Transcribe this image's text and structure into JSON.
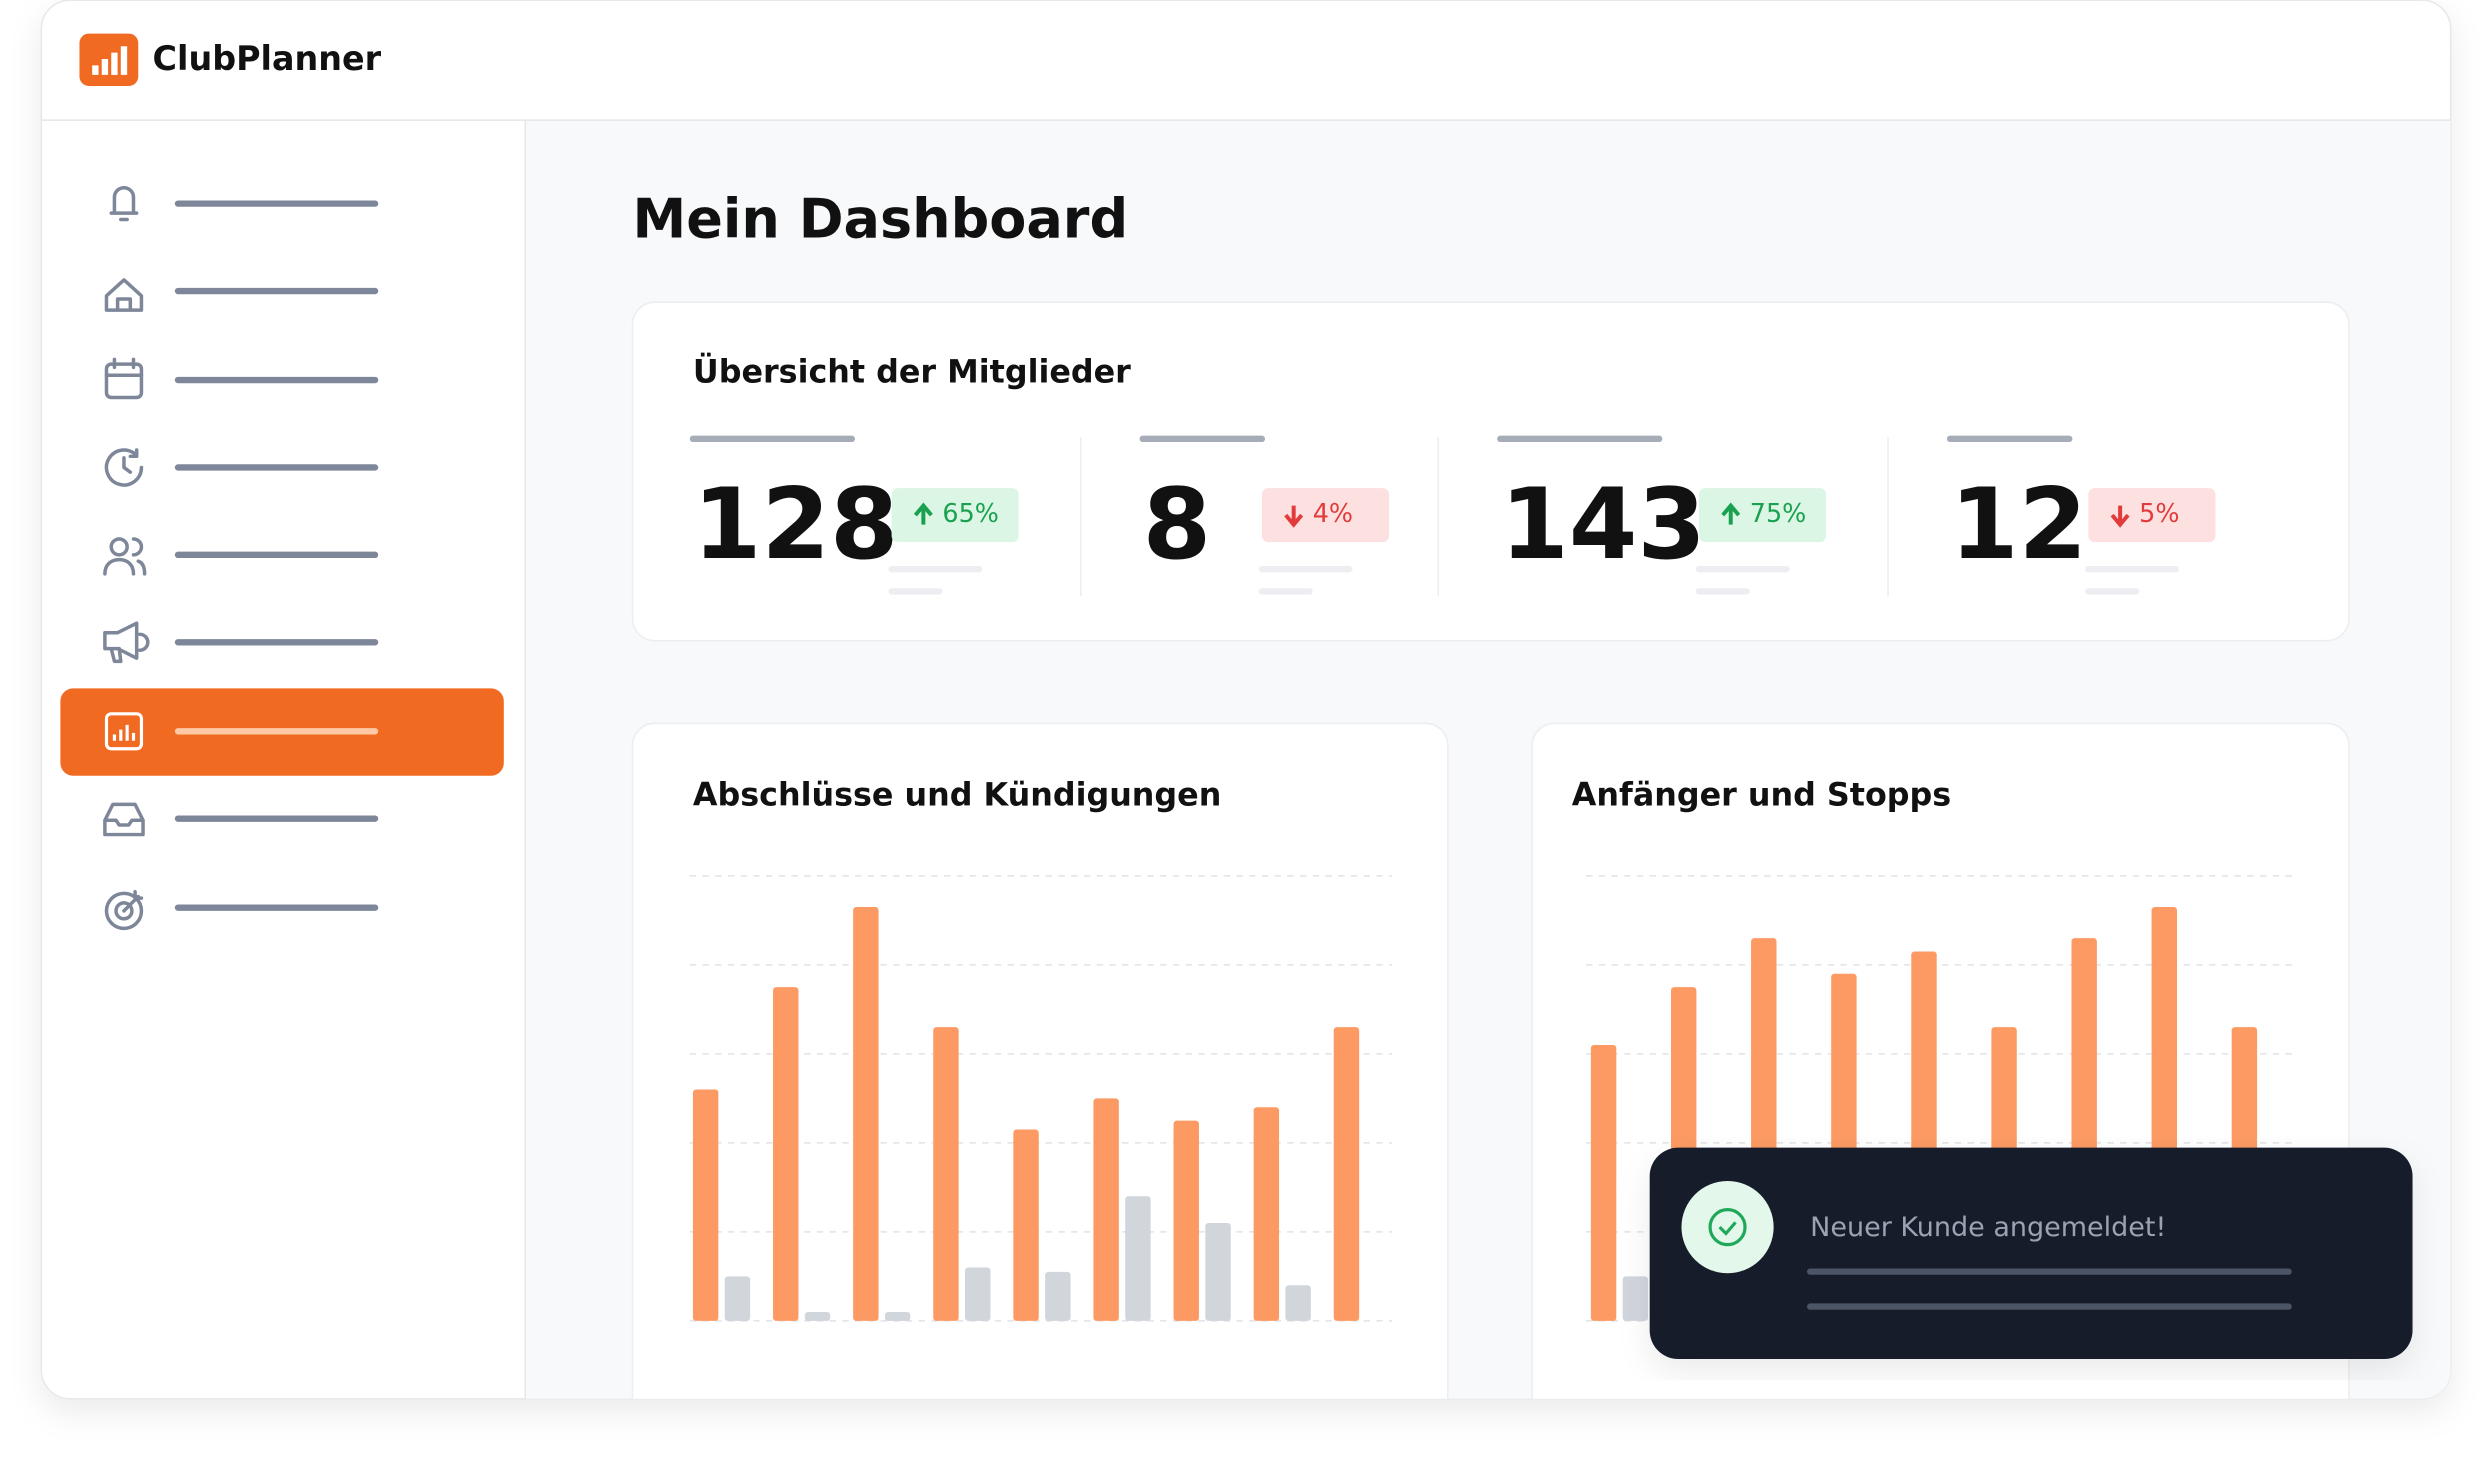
{
  "header": {
    "brand": "ClubPlanner"
  },
  "page_title": "Mein Dashboard",
  "overview": {
    "title": "Übersicht der Mitglieder",
    "stats": [
      {
        "number": "128",
        "change": "65%",
        "trend": "up"
      },
      {
        "number": "8",
        "change": "4%",
        "trend": "down"
      },
      {
        "number": "143",
        "change": "75%",
        "trend": "up"
      },
      {
        "number": "12",
        "change": "5%",
        "trend": "down"
      }
    ]
  },
  "chart_data": [
    {
      "type": "bar",
      "title": "Abschlüsse und Kündigungen",
      "ylim": [
        0,
        100
      ],
      "yticks": [
        0,
        20,
        40,
        60,
        80,
        100
      ],
      "grid": true,
      "series": [
        {
          "color": "#fd9a63",
          "values": [
            52,
            75,
            93,
            66,
            43,
            50,
            45,
            48,
            66
          ]
        },
        {
          "color": "#d1d5dc",
          "values": [
            10,
            2,
            2,
            12,
            11,
            28,
            22,
            8,
            null
          ]
        }
      ]
    },
    {
      "type": "bar",
      "title": "Anfänger und Stopps",
      "ylim": [
        0,
        100
      ],
      "yticks": [
        0,
        20,
        40,
        60,
        80,
        100
      ],
      "grid": true,
      "series": [
        {
          "color": "#fd9a63",
          "values": [
            62,
            75,
            86,
            78,
            83,
            66,
            86,
            93,
            66
          ]
        },
        {
          "color": "#d1d5dc",
          "values": [
            10,
            null,
            null,
            null,
            null,
            null,
            null,
            null,
            null
          ]
        }
      ]
    }
  ],
  "toast": {
    "message": "Neuer Kunde angemeldet!"
  }
}
